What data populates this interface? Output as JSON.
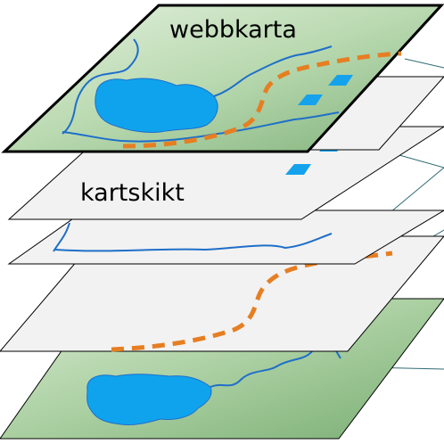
{
  "labels": {
    "top": "webbkarta",
    "layer": "kartskikt"
  },
  "colors": {
    "base_map_light": "#d6ead0",
    "base_map_dark": "#7fb17a",
    "plane_fill": "#f2f2f2",
    "water": "#0fa3ee",
    "river": "#1f6fc9",
    "road": "#e67e22",
    "building": "#14a2ec",
    "outline": "#000000",
    "leader_line": "#2f6b73"
  },
  "layers": [
    {
      "order": 1,
      "kind": "webbkarta",
      "features": [
        "lake",
        "rivers",
        "road",
        "buildings"
      ]
    },
    {
      "order": 2,
      "kind": "kartskikt",
      "features": [
        "buildings"
      ]
    },
    {
      "order": 3,
      "kind": "kartskikt",
      "features": [
        "rivers"
      ]
    },
    {
      "order": 4,
      "kind": "kartskikt",
      "features": [
        "road"
      ]
    },
    {
      "order": 5,
      "kind": "kartskikt",
      "features": [
        "lake",
        "rivers"
      ]
    }
  ]
}
